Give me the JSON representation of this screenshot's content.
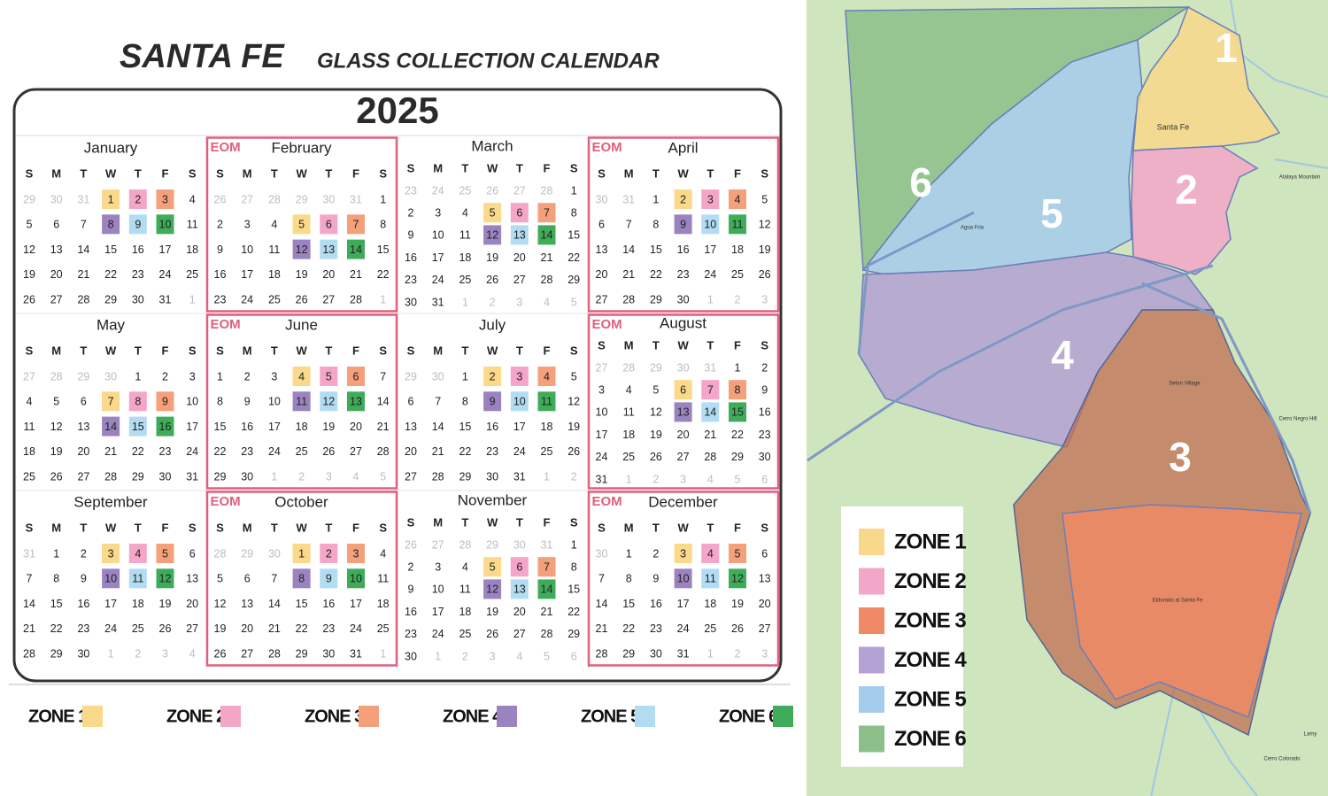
{
  "header": {
    "title": "SANTA FE",
    "subtitle": "GLASS COLLECTION CALENDAR",
    "year": "2025"
  },
  "calendar": {
    "weekdays": [
      "S",
      "M",
      "T",
      "W",
      "T",
      "F",
      "S"
    ],
    "eom_label": "EOM",
    "months": [
      {
        "name": "January",
        "eom": false,
        "prev": [
          29,
          30,
          31
        ],
        "days": [
          1,
          2,
          3,
          4,
          5,
          6,
          7,
          8,
          9,
          10,
          11,
          12,
          13,
          14,
          15,
          16,
          17,
          18,
          19,
          20,
          21,
          22,
          23,
          24,
          25,
          26,
          27,
          28,
          29,
          30,
          31
        ],
        "next": [
          1
        ],
        "zone_days": [
          1,
          2,
          3,
          8,
          9,
          10
        ]
      },
      {
        "name": "February",
        "eom": true,
        "prev": [
          26,
          27,
          28,
          29,
          30,
          31
        ],
        "days": [
          1,
          2,
          3,
          4,
          5,
          6,
          7,
          8,
          9,
          10,
          11,
          12,
          13,
          14,
          15,
          16,
          17,
          18,
          19,
          20,
          21,
          22,
          23,
          24,
          25,
          26,
          27,
          28
        ],
        "next": [
          1
        ],
        "zone_days": [
          5,
          6,
          7,
          12,
          13,
          14
        ]
      },
      {
        "name": "March",
        "eom": false,
        "prev": [
          23,
          24,
          25,
          26,
          27,
          28
        ],
        "days": [
          1,
          2,
          3,
          4,
          5,
          6,
          7,
          8,
          9,
          10,
          11,
          12,
          13,
          14,
          15,
          16,
          17,
          18,
          19,
          20,
          21,
          22,
          23,
          24,
          25,
          26,
          27,
          28,
          29,
          30,
          31
        ],
        "next": [
          1,
          2,
          3,
          4,
          5
        ],
        "zone_days": [
          5,
          6,
          7,
          12,
          13,
          14
        ]
      },
      {
        "name": "April",
        "eom": true,
        "prev": [
          30,
          31
        ],
        "days": [
          1,
          2,
          3,
          4,
          5,
          6,
          7,
          8,
          9,
          10,
          11,
          12,
          13,
          14,
          15,
          16,
          17,
          18,
          19,
          20,
          21,
          22,
          23,
          24,
          25,
          26,
          27,
          28,
          29,
          30
        ],
        "next": [
          1,
          2,
          3
        ],
        "zone_days": [
          2,
          3,
          4,
          9,
          10,
          11
        ]
      },
      {
        "name": "May",
        "eom": false,
        "prev": [
          27,
          28,
          29,
          30
        ],
        "days": [
          1,
          2,
          3,
          4,
          5,
          6,
          7,
          8,
          9,
          10,
          11,
          12,
          13,
          14,
          15,
          16,
          17,
          18,
          19,
          20,
          21,
          22,
          23,
          24,
          25,
          26,
          27,
          28,
          29,
          30,
          31
        ],
        "next": [],
        "zone_days": [
          7,
          8,
          9,
          14,
          15,
          16
        ]
      },
      {
        "name": "June",
        "eom": true,
        "prev": [],
        "days": [
          1,
          2,
          3,
          4,
          5,
          6,
          7,
          8,
          9,
          10,
          11,
          12,
          13,
          14,
          15,
          16,
          17,
          18,
          19,
          20,
          21,
          22,
          23,
          24,
          25,
          26,
          27,
          28,
          29,
          30
        ],
        "next": [
          1,
          2,
          3,
          4,
          5
        ],
        "zone_days": [
          4,
          5,
          6,
          11,
          12,
          13
        ]
      },
      {
        "name": "July",
        "eom": false,
        "prev": [
          29,
          30
        ],
        "days": [
          1,
          2,
          3,
          4,
          5,
          6,
          7,
          8,
          9,
          10,
          11,
          12,
          13,
          14,
          15,
          16,
          17,
          18,
          19,
          20,
          21,
          22,
          23,
          24,
          25,
          26,
          27,
          28,
          29,
          30,
          31
        ],
        "next": [
          1,
          2
        ],
        "zone_days": [
          2,
          3,
          4,
          9,
          10,
          11
        ]
      },
      {
        "name": "August",
        "eom": true,
        "prev": [
          27,
          28,
          29,
          30,
          31
        ],
        "days": [
          1,
          2,
          3,
          4,
          5,
          6,
          7,
          8,
          9,
          10,
          11,
          12,
          13,
          14,
          15,
          16,
          17,
          18,
          19,
          20,
          21,
          22,
          23,
          24,
          25,
          26,
          27,
          28,
          29,
          30,
          31
        ],
        "next": [
          1,
          2,
          3,
          4,
          5,
          6
        ],
        "zone_days": [
          6,
          7,
          8,
          13,
          14,
          15
        ]
      },
      {
        "name": "September",
        "eom": false,
        "prev": [
          31
        ],
        "days": [
          1,
          2,
          3,
          4,
          5,
          6,
          7,
          8,
          9,
          10,
          11,
          12,
          13,
          14,
          15,
          16,
          17,
          18,
          19,
          20,
          21,
          22,
          23,
          24,
          25,
          26,
          27,
          28,
          29,
          30
        ],
        "next": [
          1,
          2,
          3,
          4
        ],
        "zone_days": [
          3,
          4,
          5,
          10,
          11,
          12
        ]
      },
      {
        "name": "October",
        "eom": true,
        "prev": [
          28,
          29,
          30
        ],
        "days": [
          1,
          2,
          3,
          4,
          5,
          6,
          7,
          8,
          9,
          10,
          11,
          12,
          13,
          14,
          15,
          16,
          17,
          18,
          19,
          20,
          21,
          22,
          23,
          24,
          25,
          26,
          27,
          28,
          29,
          30,
          31
        ],
        "next": [
          1
        ],
        "zone_days": [
          1,
          2,
          3,
          8,
          9,
          10
        ]
      },
      {
        "name": "November",
        "eom": false,
        "prev": [
          26,
          27,
          28,
          29,
          30,
          31
        ],
        "days": [
          1,
          2,
          3,
          4,
          5,
          6,
          7,
          8,
          9,
          10,
          11,
          12,
          13,
          14,
          15,
          16,
          17,
          18,
          19,
          20,
          21,
          22,
          23,
          24,
          25,
          26,
          27,
          28,
          29,
          30
        ],
        "next": [
          1,
          2,
          3,
          4,
          5,
          6
        ],
        "zone_days": [
          5,
          6,
          7,
          12,
          13,
          14
        ]
      },
      {
        "name": "December",
        "eom": true,
        "prev": [
          30
        ],
        "days": [
          1,
          2,
          3,
          4,
          5,
          6,
          7,
          8,
          9,
          10,
          11,
          12,
          13,
          14,
          15,
          16,
          17,
          18,
          19,
          20,
          21,
          22,
          23,
          24,
          25,
          26,
          27,
          28,
          29,
          30,
          31
        ],
        "next": [
          1,
          2,
          3
        ],
        "zone_days": [
          3,
          4,
          5,
          10,
          11,
          12
        ]
      }
    ],
    "legend": [
      {
        "label": "ZONE 1",
        "color": "#fbd98a"
      },
      {
        "label": "ZONE 2",
        "color": "#f4a6c8"
      },
      {
        "label": "ZONE 3",
        "color": "#f4a07a"
      },
      {
        "label": "ZONE 4",
        "color": "#9b83bf"
      },
      {
        "label": "ZONE 5",
        "color": "#b2dcf2"
      },
      {
        "label": "ZONE 6",
        "color": "#3fac5a"
      }
    ]
  },
  "map": {
    "zone_labels": [
      "1",
      "2",
      "3",
      "4",
      "5",
      "6"
    ],
    "places": [
      "Santa Fe",
      "Seton Village",
      "Eldorado at Santa Fe",
      "Agua Fria",
      "Atalaya Mountain",
      "Cerro Negro Hill",
      "Lamy",
      "Cerro Colorado"
    ],
    "legend": [
      {
        "label": "ZONE 1",
        "color": "#f9d88b"
      },
      {
        "label": "ZONE 2",
        "color": "#f2a7c9"
      },
      {
        "label": "ZONE 3",
        "color": "#f08a66"
      },
      {
        "label": "ZONE 4",
        "color": "#b3a2d3"
      },
      {
        "label": "ZONE 5",
        "color": "#a4cdec"
      },
      {
        "label": "ZONE 6",
        "color": "#8dbf8a"
      }
    ]
  }
}
